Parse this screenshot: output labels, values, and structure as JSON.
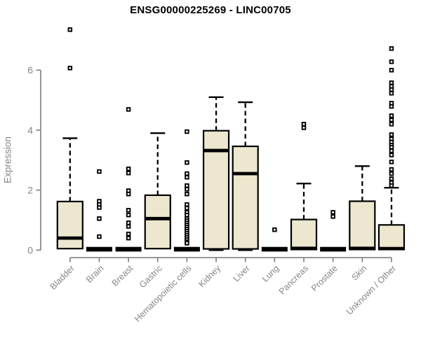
{
  "chart_data": {
    "type": "boxplot",
    "title": "ENSG00000225269 - LINC00705",
    "ylabel": "Expression",
    "xlabel": "",
    "yticks": [
      0,
      2,
      4,
      6
    ],
    "ylim": [
      0,
      7.6
    ],
    "grid": false,
    "legend": "none",
    "colors": {
      "box_fill": "#EDE7CF",
      "box_stroke": "#000000",
      "median": "#000000",
      "whisker": "#000000",
      "outlier": "#000000",
      "axis": "#8A8A8A",
      "tick_label": "#858585",
      "title": "#000000",
      "background": "#FFFFFF"
    },
    "categories": [
      "Bladder",
      "Brain",
      "Breast",
      "Gastric",
      "Hematopoietic cells",
      "Kidney",
      "Liver",
      "Lung",
      "Pancreas",
      "Prostate",
      "Skin",
      "Unknown / Other"
    ],
    "boxes": [
      {
        "label": "Bladder",
        "collapsed": false,
        "q1": 0.05,
        "median": 0.4,
        "q3": 1.62,
        "whisker_low": 0.05,
        "whisker_high": 3.73,
        "outliers": [
          7.35,
          6.07
        ]
      },
      {
        "label": "Brain",
        "collapsed": true,
        "median": 0.03,
        "outliers": [
          2.62,
          1.63,
          1.52,
          1.42,
          1.05,
          0.45
        ]
      },
      {
        "label": "Breast",
        "collapsed": true,
        "median": 0.03,
        "outliers": [
          4.69,
          2.71,
          2.57,
          1.98,
          1.87,
          1.33,
          1.17,
          0.91,
          0.79,
          0.54,
          0.4
        ]
      },
      {
        "label": "Gastric",
        "collapsed": false,
        "q1": 0.05,
        "median": 1.05,
        "q3": 1.83,
        "whisker_low": 0.05,
        "whisker_high": 3.9,
        "outliers": []
      },
      {
        "label": "Hematopoietic cells",
        "collapsed": true,
        "median": 0.03,
        "outliers": [
          3.95,
          2.92,
          2.55,
          2.43,
          2.15,
          2.03,
          1.87,
          1.52,
          1.4,
          1.26,
          1.17,
          1.05,
          0.98,
          0.91,
          0.84,
          0.77,
          0.7,
          0.63,
          0.56,
          0.49,
          0.42,
          0.35,
          0.28,
          0.23
        ]
      },
      {
        "label": "Kidney",
        "collapsed": false,
        "q1": 0.04,
        "median": 3.32,
        "q3": 3.98,
        "whisker_low": 0.0,
        "whisker_high": 5.1,
        "outliers": []
      },
      {
        "label": "Liver",
        "collapsed": false,
        "q1": 0.04,
        "median": 2.55,
        "q3": 3.46,
        "whisker_low": 0.0,
        "whisker_high": 4.93,
        "outliers": []
      },
      {
        "label": "Lung",
        "collapsed": true,
        "median": 0.03,
        "outliers": [
          0.68
        ]
      },
      {
        "label": "Pancreas",
        "collapsed": false,
        "q1": 0.02,
        "median": 0.06,
        "q3": 1.02,
        "whisker_low": 0.02,
        "whisker_high": 2.22,
        "outliers": [
          4.2,
          4.08
        ]
      },
      {
        "label": "Prostate",
        "collapsed": true,
        "median": 0.03,
        "outliers": [
          1.26,
          1.12
        ]
      },
      {
        "label": "Skin",
        "collapsed": false,
        "q1": 0.02,
        "median": 0.06,
        "q3": 1.63,
        "whisker_low": 0.02,
        "whisker_high": 2.8,
        "outliers": []
      },
      {
        "label": "Unknown / Other",
        "collapsed": false,
        "q1": 0.02,
        "median": 0.05,
        "q3": 0.84,
        "whisker_low": 0.02,
        "whisker_high": 2.08,
        "outliers": [
          6.72,
          6.28,
          6.0,
          5.58,
          5.46,
          5.35,
          5.23,
          4.9,
          4.79,
          4.48,
          4.34,
          4.2,
          3.85,
          3.71,
          3.6,
          3.5,
          3.43,
          3.31,
          3.17,
          2.94,
          2.69,
          2.55,
          2.38,
          2.25,
          2.15
        ]
      }
    ]
  }
}
